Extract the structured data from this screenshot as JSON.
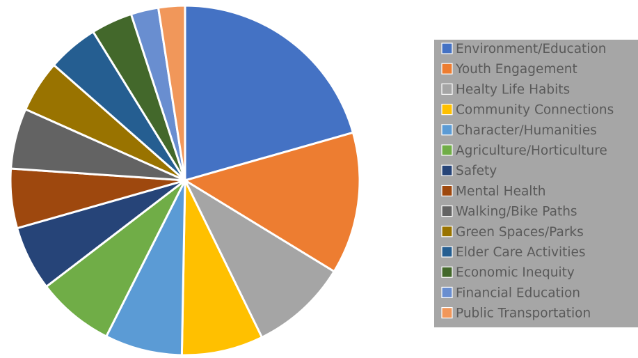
{
  "chart_data": {
    "type": "pie",
    "title": "",
    "legend_position": "right",
    "slices": [
      {
        "label": "Environment/Education",
        "value": 21.0,
        "color": "#4472c4"
      },
      {
        "label": "Youth Engagement",
        "value": 13.4,
        "color": "#ed7d31"
      },
      {
        "label": "Healty Life Habits",
        "value": 9.2,
        "color": "#a5a5a5"
      },
      {
        "label": "Community Connections",
        "value": 7.7,
        "color": "#ffc000"
      },
      {
        "label": "Character/Humanities",
        "value": 7.3,
        "color": "#5b9bd5"
      },
      {
        "label": "Agriculture/Horticulture",
        "value": 7.3,
        "color": "#70ad47"
      },
      {
        "label": "Safety",
        "value": 6.1,
        "color": "#264478"
      },
      {
        "label": "Mental Health",
        "value": 5.6,
        "color": "#9e480e"
      },
      {
        "label": "Walking/Bike Paths",
        "value": 5.7,
        "color": "#636363"
      },
      {
        "label": "Green Spaces/Parks",
        "value": 4.9,
        "color": "#997300"
      },
      {
        "label": "Elder Care Activities",
        "value": 4.8,
        "color": "#255e91"
      },
      {
        "label": "Economic Inequity",
        "value": 3.9,
        "color": "#43682b"
      },
      {
        "label": "Financial Education",
        "value": 2.6,
        "color": "#698ed0"
      },
      {
        "label": "Public Transportation",
        "value": 2.5,
        "color": "#f1975a"
      }
    ]
  }
}
